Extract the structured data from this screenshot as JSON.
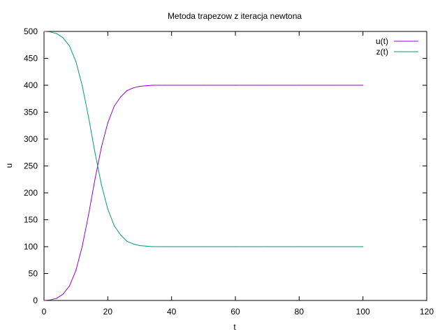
{
  "chart_data": {
    "type": "line",
    "title": "Metoda trapezow z iteracja newtona",
    "xlabel": "t",
    "ylabel": "u",
    "xlim": [
      0,
      120
    ],
    "ylim": [
      0,
      500
    ],
    "xticks": [
      0,
      20,
      40,
      60,
      80,
      100,
      120
    ],
    "yticks": [
      0,
      50,
      100,
      150,
      200,
      250,
      300,
      350,
      400,
      450,
      500
    ],
    "grid": false,
    "legend_position": "top-right",
    "series": [
      {
        "name": "u(t)",
        "color": "#9400d3",
        "x": [
          0,
          2,
          4,
          6,
          8,
          10,
          12,
          14,
          16,
          18,
          20,
          22,
          24,
          26,
          28,
          30,
          32,
          34,
          36,
          38,
          40,
          50,
          60,
          70,
          80,
          90,
          100
        ],
        "y": [
          0,
          1,
          4,
          12,
          27,
          56,
          101,
          160,
          226,
          285,
          330,
          361,
          378,
          390,
          395,
          398,
          399,
          400,
          400,
          400,
          400,
          400,
          400,
          400,
          400,
          400,
          400
        ]
      },
      {
        "name": "z(t)",
        "color": "#009e73",
        "x": [
          0,
          2,
          4,
          6,
          8,
          10,
          12,
          14,
          16,
          18,
          20,
          22,
          24,
          26,
          28,
          30,
          32,
          34,
          36,
          38,
          40,
          50,
          60,
          70,
          80,
          90,
          100
        ],
        "y": [
          500,
          499,
          496,
          488,
          473,
          444,
          399,
          340,
          274,
          215,
          170,
          139,
          122,
          110,
          105,
          102,
          101,
          100,
          100,
          100,
          100,
          100,
          100,
          100,
          100,
          100,
          100
        ]
      }
    ]
  }
}
